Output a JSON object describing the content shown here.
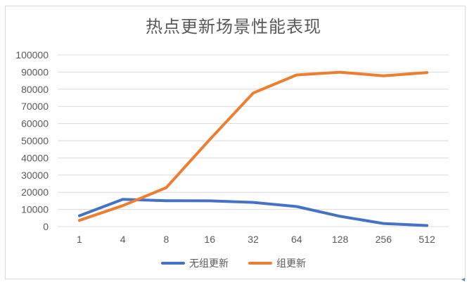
{
  "chart_data": {
    "type": "line",
    "title": "热点更新场景性能表现",
    "xlabel": "",
    "ylabel": "",
    "categories": [
      "1",
      "4",
      "8",
      "16",
      "32",
      "64",
      "128",
      "256",
      "512"
    ],
    "series": [
      {
        "name": "无组更新",
        "color": "#4472C4",
        "values": [
          6300,
          15900,
          15100,
          15000,
          14100,
          11700,
          6000,
          1800,
          600
        ]
      },
      {
        "name": "组更新",
        "color": "#ED7D31",
        "values": [
          3600,
          12200,
          22700,
          50700,
          77800,
          88300,
          89900,
          87800,
          89700
        ]
      }
    ],
    "ylim": [
      0,
      100000
    ],
    "yticks": [
      "0",
      "10000",
      "20000",
      "30000",
      "40000",
      "50000",
      "60000",
      "70000",
      "80000",
      "90000",
      "100000"
    ],
    "grid": true,
    "legend_position": "bottom"
  },
  "legend": {
    "items": [
      {
        "label": "无组更新",
        "color": "#4472C4"
      },
      {
        "label": "组更新",
        "color": "#ED7D31"
      }
    ]
  }
}
